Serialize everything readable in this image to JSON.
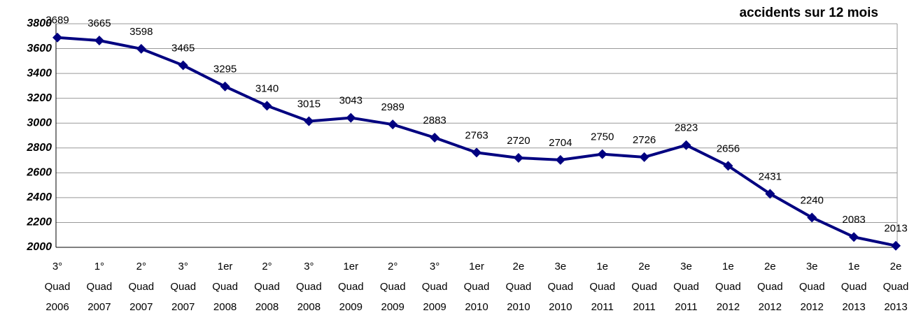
{
  "chart_data": {
    "type": "line",
    "title": "accidents sur 12 mois",
    "categories": [
      [
        "3°",
        "Quad",
        "2006"
      ],
      [
        "1°",
        "Quad",
        "2007"
      ],
      [
        "2°",
        "Quad",
        "2007"
      ],
      [
        "3°",
        "Quad",
        "2007"
      ],
      [
        "1er",
        "Quad",
        "2008"
      ],
      [
        "2°",
        "Quad",
        "2008"
      ],
      [
        "3°",
        "Quad",
        "2008"
      ],
      [
        "1er",
        "Quad",
        "2009"
      ],
      [
        "2°",
        "Quad",
        "2009"
      ],
      [
        "3°",
        "Quad",
        "2009"
      ],
      [
        "1er",
        "Quad",
        "2010"
      ],
      [
        "2e",
        "Quad",
        "2010"
      ],
      [
        "3e",
        "Quad",
        "2010"
      ],
      [
        "1e",
        "Quad",
        "2011"
      ],
      [
        "2e",
        "Quad",
        "2011"
      ],
      [
        "3e",
        "Quad",
        "2011"
      ],
      [
        "1e",
        "Quad",
        "2012"
      ],
      [
        "2e",
        "Quad",
        "2012"
      ],
      [
        "3e",
        "Quad",
        "2012"
      ],
      [
        "1e",
        "Quad",
        "2013"
      ],
      [
        "2e",
        "Quad",
        "2013"
      ]
    ],
    "values": [
      3689,
      3665,
      3598,
      3465,
      3295,
      3140,
      3015,
      3043,
      2989,
      2883,
      2763,
      2720,
      2704,
      2750,
      2726,
      2823,
      2656,
      2431,
      2240,
      2083,
      2013
    ],
    "color": "#000080",
    "ylim": [
      2000,
      3800
    ],
    "yticks": [
      2000,
      2200,
      2400,
      2600,
      2800,
      3000,
      3200,
      3400,
      3600,
      3800
    ],
    "grid": true
  }
}
